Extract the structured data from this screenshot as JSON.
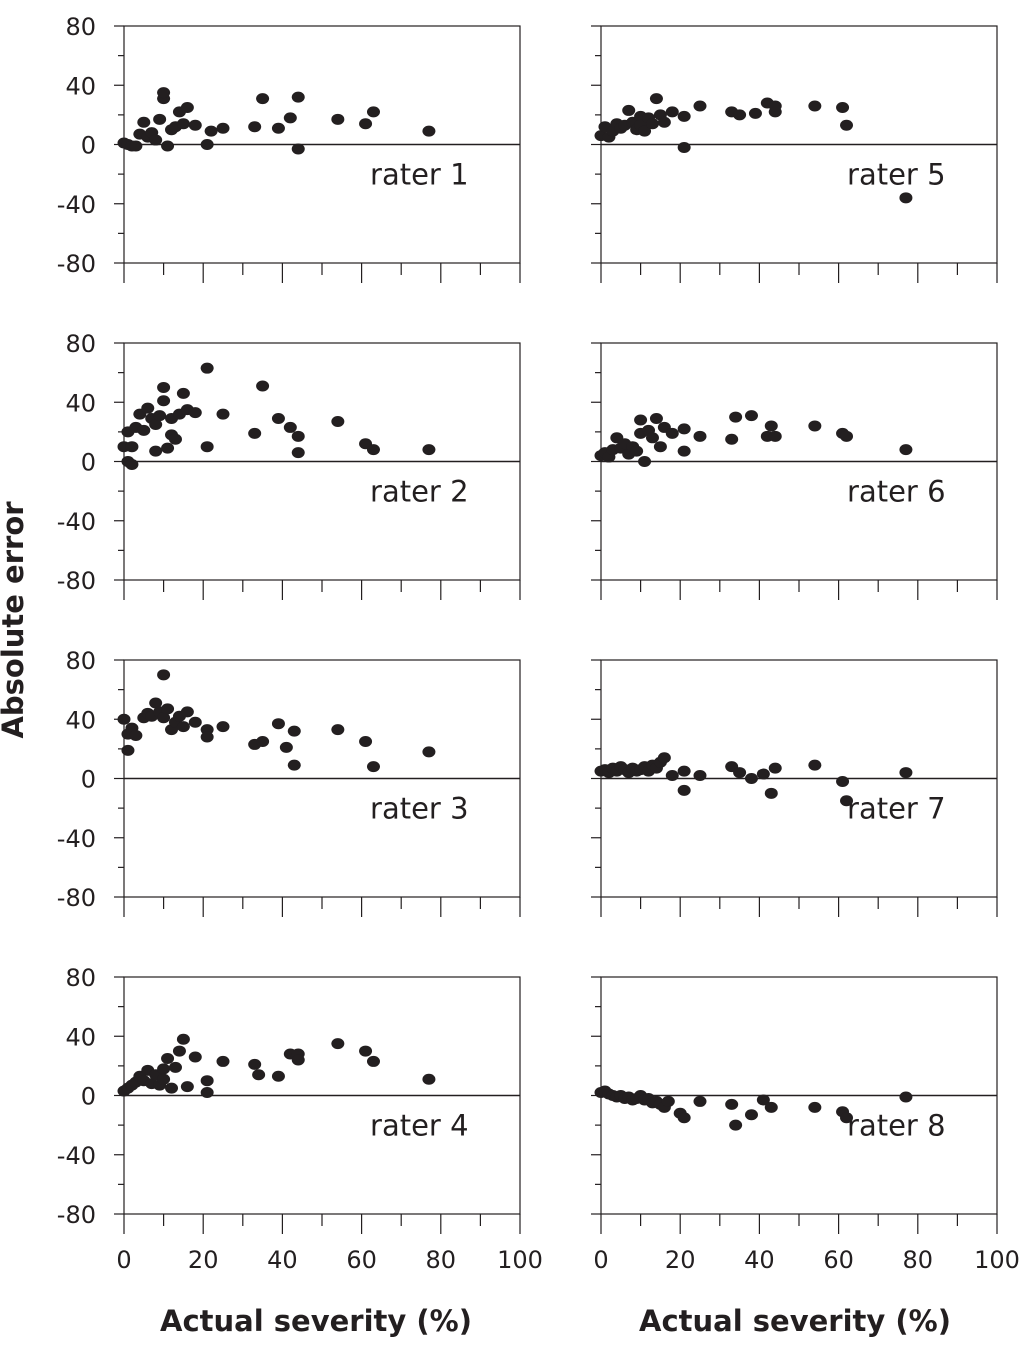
{
  "figure": {
    "ylabel": "Absolute error",
    "xlabel": "Actual severity (%)"
  },
  "chart_data": [
    {
      "type": "scatter",
      "label": "rater 1",
      "xlim": [
        0,
        100
      ],
      "ylim": [
        -80,
        80
      ],
      "xticks": [
        0,
        20,
        40,
        60,
        80,
        100
      ],
      "yticks": [
        80,
        40,
        0,
        -40,
        -80
      ],
      "points": [
        [
          0,
          1
        ],
        [
          1,
          0
        ],
        [
          2,
          -1
        ],
        [
          3,
          -1
        ],
        [
          4,
          7
        ],
        [
          5,
          15
        ],
        [
          6,
          5
        ],
        [
          7,
          8
        ],
        [
          8,
          3
        ],
        [
          9,
          17
        ],
        [
          10,
          31
        ],
        [
          10,
          35
        ],
        [
          11,
          -1
        ],
        [
          12,
          10
        ],
        [
          13,
          12
        ],
        [
          14,
          22
        ],
        [
          15,
          14
        ],
        [
          16,
          25
        ],
        [
          18,
          13
        ],
        [
          21,
          0
        ],
        [
          22,
          9
        ],
        [
          25,
          11
        ],
        [
          33,
          12
        ],
        [
          35,
          31
        ],
        [
          39,
          11
        ],
        [
          42,
          18
        ],
        [
          44,
          -3
        ],
        [
          44,
          32
        ],
        [
          54,
          17
        ],
        [
          61,
          14
        ],
        [
          63,
          22
        ],
        [
          77,
          9
        ]
      ]
    },
    {
      "type": "scatter",
      "label": "rater 2",
      "xlim": [
        0,
        100
      ],
      "ylim": [
        -80,
        80
      ],
      "xticks": [
        0,
        20,
        40,
        60,
        80,
        100
      ],
      "yticks": [
        80,
        40,
        0,
        -40,
        -80
      ],
      "points": [
        [
          0,
          10
        ],
        [
          1,
          0
        ],
        [
          1,
          20
        ],
        [
          2,
          -2
        ],
        [
          2,
          10
        ],
        [
          3,
          23
        ],
        [
          4,
          32
        ],
        [
          5,
          21
        ],
        [
          6,
          36
        ],
        [
          7,
          29
        ],
        [
          8,
          7
        ],
        [
          8,
          25
        ],
        [
          9,
          31
        ],
        [
          10,
          41
        ],
        [
          10,
          50
        ],
        [
          11,
          9
        ],
        [
          12,
          29
        ],
        [
          12,
          18
        ],
        [
          13,
          15
        ],
        [
          14,
          32
        ],
        [
          15,
          46
        ],
        [
          16,
          35
        ],
        [
          18,
          33
        ],
        [
          21,
          63
        ],
        [
          21,
          10
        ],
        [
          25,
          32
        ],
        [
          33,
          19
        ],
        [
          35,
          51
        ],
        [
          39,
          29
        ],
        [
          42,
          23
        ],
        [
          44,
          17
        ],
        [
          44,
          6
        ],
        [
          54,
          27
        ],
        [
          61,
          12
        ],
        [
          63,
          8
        ],
        [
          77,
          8
        ]
      ]
    },
    {
      "type": "scatter",
      "label": "rater 3",
      "xlim": [
        0,
        100
      ],
      "ylim": [
        -80,
        80
      ],
      "xticks": [
        0,
        20,
        40,
        60,
        80,
        100
      ],
      "yticks": [
        80,
        40,
        0,
        -40,
        -80
      ],
      "points": [
        [
          0,
          40
        ],
        [
          1,
          19
        ],
        [
          1,
          30
        ],
        [
          2,
          34
        ],
        [
          3,
          29
        ],
        [
          5,
          41
        ],
        [
          6,
          44
        ],
        [
          7,
          42
        ],
        [
          8,
          51
        ],
        [
          9,
          45
        ],
        [
          10,
          70
        ],
        [
          10,
          41
        ],
        [
          11,
          47
        ],
        [
          12,
          33
        ],
        [
          13,
          38
        ],
        [
          14,
          42
        ],
        [
          15,
          35
        ],
        [
          16,
          45
        ],
        [
          18,
          38
        ],
        [
          21,
          33
        ],
        [
          21,
          28
        ],
        [
          25,
          35
        ],
        [
          33,
          23
        ],
        [
          35,
          25
        ],
        [
          39,
          37
        ],
        [
          41,
          21
        ],
        [
          43,
          32
        ],
        [
          43,
          9
        ],
        [
          54,
          33
        ],
        [
          61,
          25
        ],
        [
          63,
          8
        ],
        [
          77,
          18
        ]
      ]
    },
    {
      "type": "scatter",
      "label": "rater 4",
      "xlim": [
        0,
        100
      ],
      "ylim": [
        -80,
        80
      ],
      "xticks": [
        0,
        20,
        40,
        60,
        80,
        100
      ],
      "yticks": [
        80,
        40,
        0,
        -40,
        -80
      ],
      "points": [
        [
          0,
          3
        ],
        [
          1,
          5
        ],
        [
          2,
          7
        ],
        [
          3,
          9
        ],
        [
          4,
          13
        ],
        [
          5,
          10
        ],
        [
          6,
          17
        ],
        [
          7,
          8
        ],
        [
          8,
          14
        ],
        [
          9,
          7
        ],
        [
          10,
          18
        ],
        [
          10,
          11
        ],
        [
          11,
          25
        ],
        [
          12,
          5
        ],
        [
          13,
          19
        ],
        [
          14,
          30
        ],
        [
          15,
          38
        ],
        [
          16,
          6
        ],
        [
          18,
          26
        ],
        [
          21,
          2
        ],
        [
          21,
          10
        ],
        [
          25,
          23
        ],
        [
          33,
          21
        ],
        [
          34,
          14
        ],
        [
          39,
          13
        ],
        [
          42,
          28
        ],
        [
          44,
          28
        ],
        [
          44,
          24
        ],
        [
          54,
          35
        ],
        [
          61,
          30
        ],
        [
          63,
          23
        ],
        [
          77,
          11
        ]
      ]
    },
    {
      "type": "scatter",
      "label": "rater 5",
      "xlim": [
        0,
        100
      ],
      "ylim": [
        -80,
        80
      ],
      "xticks": [
        0,
        20,
        40,
        60,
        80,
        100
      ],
      "yticks": [
        80,
        40,
        0,
        -40,
        -80
      ],
      "points": [
        [
          0,
          6
        ],
        [
          1,
          12
        ],
        [
          2,
          5
        ],
        [
          3,
          9
        ],
        [
          4,
          14
        ],
        [
          5,
          11
        ],
        [
          6,
          13
        ],
        [
          7,
          23
        ],
        [
          8,
          15
        ],
        [
          9,
          10
        ],
        [
          10,
          19
        ],
        [
          10,
          13
        ],
        [
          11,
          9
        ],
        [
          12,
          18
        ],
        [
          13,
          14
        ],
        [
          14,
          31
        ],
        [
          15,
          20
        ],
        [
          16,
          15
        ],
        [
          18,
          22
        ],
        [
          21,
          -2
        ],
        [
          21,
          19
        ],
        [
          25,
          26
        ],
        [
          33,
          22
        ],
        [
          35,
          20
        ],
        [
          39,
          21
        ],
        [
          42,
          28
        ],
        [
          44,
          22
        ],
        [
          44,
          26
        ],
        [
          54,
          26
        ],
        [
          61,
          25
        ],
        [
          62,
          13
        ],
        [
          77,
          -36
        ]
      ]
    },
    {
      "type": "scatter",
      "label": "rater 6",
      "xlim": [
        0,
        100
      ],
      "ylim": [
        -80,
        80
      ],
      "xticks": [
        0,
        20,
        40,
        60,
        80,
        100
      ],
      "yticks": [
        80,
        40,
        0,
        -40,
        -80
      ],
      "points": [
        [
          0,
          4
        ],
        [
          1,
          6
        ],
        [
          2,
          3
        ],
        [
          3,
          8
        ],
        [
          4,
          16
        ],
        [
          5,
          9
        ],
        [
          6,
          12
        ],
        [
          7,
          5
        ],
        [
          8,
          10
        ],
        [
          9,
          7
        ],
        [
          10,
          19
        ],
        [
          10,
          28
        ],
        [
          11,
          0
        ],
        [
          12,
          21
        ],
        [
          13,
          16
        ],
        [
          14,
          29
        ],
        [
          15,
          10
        ],
        [
          16,
          23
        ],
        [
          18,
          19
        ],
        [
          21,
          22
        ],
        [
          21,
          7
        ],
        [
          25,
          17
        ],
        [
          33,
          15
        ],
        [
          34,
          30
        ],
        [
          38,
          31
        ],
        [
          42,
          17
        ],
        [
          43,
          24
        ],
        [
          44,
          17
        ],
        [
          54,
          24
        ],
        [
          61,
          19
        ],
        [
          62,
          17
        ],
        [
          77,
          8
        ]
      ]
    },
    {
      "type": "scatter",
      "label": "rater 7",
      "xlim": [
        0,
        100
      ],
      "ylim": [
        -80,
        80
      ],
      "xticks": [
        0,
        20,
        40,
        60,
        80,
        100
      ],
      "yticks": [
        80,
        40,
        0,
        -40,
        -80
      ],
      "points": [
        [
          0,
          5
        ],
        [
          1,
          6
        ],
        [
          2,
          4
        ],
        [
          3,
          7
        ],
        [
          4,
          5
        ],
        [
          5,
          8
        ],
        [
          6,
          6
        ],
        [
          7,
          4
        ],
        [
          8,
          7
        ],
        [
          9,
          5
        ],
        [
          10,
          6
        ],
        [
          11,
          8
        ],
        [
          12,
          5
        ],
        [
          13,
          9
        ],
        [
          14,
          7
        ],
        [
          15,
          11
        ],
        [
          16,
          14
        ],
        [
          18,
          2
        ],
        [
          21,
          -8
        ],
        [
          21,
          5
        ],
        [
          25,
          2
        ],
        [
          33,
          8
        ],
        [
          35,
          4
        ],
        [
          38,
          0
        ],
        [
          41,
          3
        ],
        [
          43,
          -10
        ],
        [
          44,
          7
        ],
        [
          54,
          9
        ],
        [
          61,
          -2
        ],
        [
          62,
          -15
        ],
        [
          77,
          4
        ]
      ]
    },
    {
      "type": "scatter",
      "label": "rater 8",
      "xlim": [
        0,
        100
      ],
      "ylim": [
        -80,
        80
      ],
      "xticks": [
        0,
        20,
        40,
        60,
        80,
        100
      ],
      "yticks": [
        80,
        40,
        0,
        -40,
        -80
      ],
      "points": [
        [
          0,
          2
        ],
        [
          1,
          3
        ],
        [
          2,
          1
        ],
        [
          3,
          0
        ],
        [
          4,
          -1
        ],
        [
          5,
          0
        ],
        [
          6,
          -2
        ],
        [
          7,
          -1
        ],
        [
          8,
          -3
        ],
        [
          9,
          -2
        ],
        [
          10,
          0
        ],
        [
          11,
          -3
        ],
        [
          12,
          -2
        ],
        [
          13,
          -5
        ],
        [
          14,
          -4
        ],
        [
          15,
          -6
        ],
        [
          16,
          -8
        ],
        [
          17,
          -4
        ],
        [
          20,
          -12
        ],
        [
          21,
          -15
        ],
        [
          25,
          -4
        ],
        [
          33,
          -6
        ],
        [
          34,
          -20
        ],
        [
          38,
          -13
        ],
        [
          41,
          -3
        ],
        [
          43,
          -8
        ],
        [
          54,
          -8
        ],
        [
          61,
          -11
        ],
        [
          62,
          -15
        ],
        [
          77,
          -1
        ]
      ]
    }
  ]
}
